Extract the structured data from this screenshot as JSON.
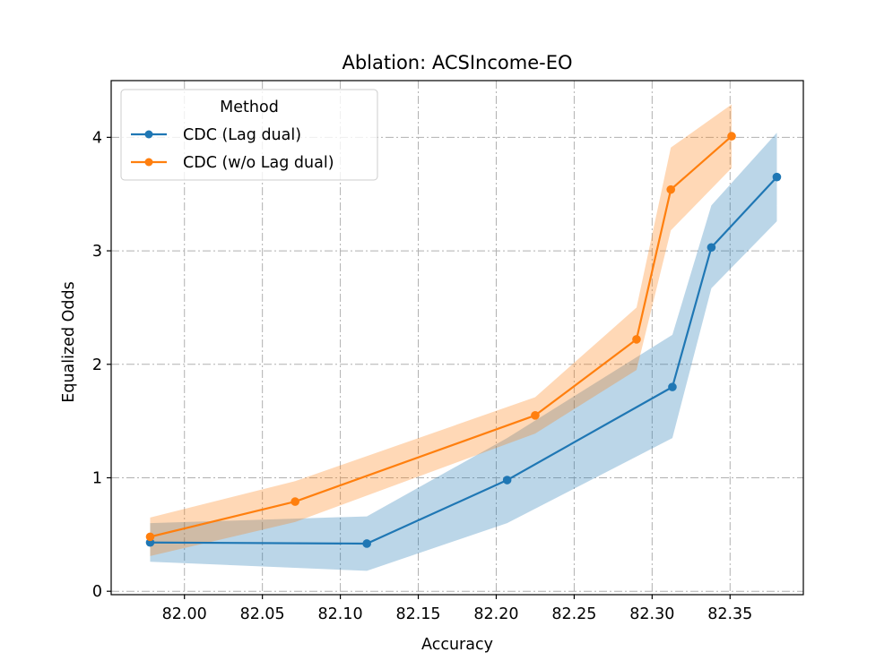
{
  "chart_data": {
    "type": "line",
    "title": "Ablation: ACSIncome-EO",
    "xlabel": "Accuracy",
    "ylabel": "Equalized Odds",
    "xlim": [
      81.953,
      82.397
    ],
    "ylim": [
      -0.03,
      4.5
    ],
    "xticks": [
      82.0,
      82.05,
      82.1,
      82.15,
      82.2,
      82.25,
      82.3,
      82.35
    ],
    "xtick_labels": [
      "82.00",
      "82.05",
      "82.10",
      "82.15",
      "82.20",
      "82.25",
      "82.30",
      "82.35"
    ],
    "yticks": [
      0,
      1,
      2,
      3,
      4
    ],
    "ytick_labels": [
      "0",
      "1",
      "2",
      "3",
      "4"
    ],
    "grid": true,
    "legend": {
      "title": "Method",
      "position": "top-left"
    },
    "series": [
      {
        "name": "CDC (Lag dual)",
        "color": "#1f77b4",
        "band_color": "#1f77b4",
        "x": [
          81.978,
          82.117,
          82.207,
          82.313,
          82.338,
          82.38
        ],
        "y": [
          0.43,
          0.42,
          0.98,
          1.8,
          3.03,
          3.65
        ],
        "lower": [
          0.26,
          0.18,
          0.6,
          1.35,
          2.67,
          3.26
        ],
        "upper": [
          0.6,
          0.66,
          1.35,
          2.26,
          3.4,
          4.04
        ]
      },
      {
        "name": "CDC (w/o Lag dual)",
        "color": "#ff7f0e",
        "band_color": "#ff7f0e",
        "x": [
          81.978,
          82.071,
          82.225,
          82.29,
          82.312,
          82.351
        ],
        "y": [
          0.48,
          0.79,
          1.55,
          2.22,
          3.54,
          4.01
        ],
        "lower": [
          0.31,
          0.61,
          1.39,
          1.95,
          3.18,
          3.73
        ],
        "upper": [
          0.65,
          0.97,
          1.71,
          2.5,
          3.91,
          4.29
        ]
      }
    ]
  }
}
